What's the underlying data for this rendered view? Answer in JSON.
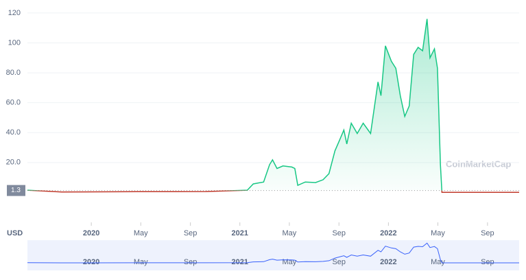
{
  "chart_data": {
    "type": "line",
    "currency_label": "USD",
    "watermark": "CoinMarketCap",
    "current_price": 1.3,
    "xlim": [
      2019.57,
      2022.88
    ],
    "xticks": [
      2020,
      {
        "value": 2020.333,
        "label": "May"
      },
      {
        "value": 2020.667,
        "label": "Sep"
      },
      2021,
      {
        "value": 2021.333,
        "label": "May"
      },
      {
        "value": 2021.667,
        "label": "Sep"
      },
      2022,
      {
        "value": 2022.333,
        "label": "May"
      },
      {
        "value": 2022.667,
        "label": "Sep"
      }
    ],
    "ylim": [
      -20,
      125
    ],
    "yticks": [
      {
        "value": 20,
        "label": "20.0"
      },
      {
        "value": 40,
        "label": "40.0"
      },
      {
        "value": 60,
        "label": "60.0"
      },
      {
        "value": 80,
        "label": "80.0"
      },
      100,
      120
    ],
    "grid": true,
    "x": [
      2019.57,
      2019.8,
      2020.31,
      2020.77,
      2021.05,
      2021.09,
      2021.16,
      2021.2,
      2021.22,
      2021.25,
      2021.29,
      2021.35,
      2021.37,
      2021.39,
      2021.44,
      2021.51,
      2021.56,
      2021.6,
      2021.64,
      2021.67,
      2021.7,
      2021.72,
      2021.75,
      2021.79,
      2021.83,
      2021.88,
      2021.93,
      2021.95,
      2021.98,
      2022.02,
      2022.05,
      2022.08,
      2022.11,
      2022.14,
      2022.17,
      2022.2,
      2022.23,
      2022.26,
      2022.28,
      2022.31,
      2022.33,
      2022.35,
      2022.36,
      2022.88
    ],
    "series": [
      {
        "color": "#16c784",
        "below_color": "#c0392b",
        "values": [
          1.5,
          0.3,
          0.5,
          0.6,
          1.5,
          5.7,
          7,
          18.6,
          21.8,
          16,
          17.7,
          17,
          16,
          4.8,
          7,
          6.6,
          8.5,
          12.6,
          27.8,
          34.7,
          41.7,
          32.4,
          46.3,
          39.4,
          46.3,
          39.4,
          73.9,
          64.7,
          98,
          87.7,
          83,
          64.7,
          50.8,
          57.8,
          92.3,
          97,
          94.7,
          116,
          90,
          96,
          83,
          18.6,
          0.1,
          0.1
        ]
      }
    ]
  }
}
